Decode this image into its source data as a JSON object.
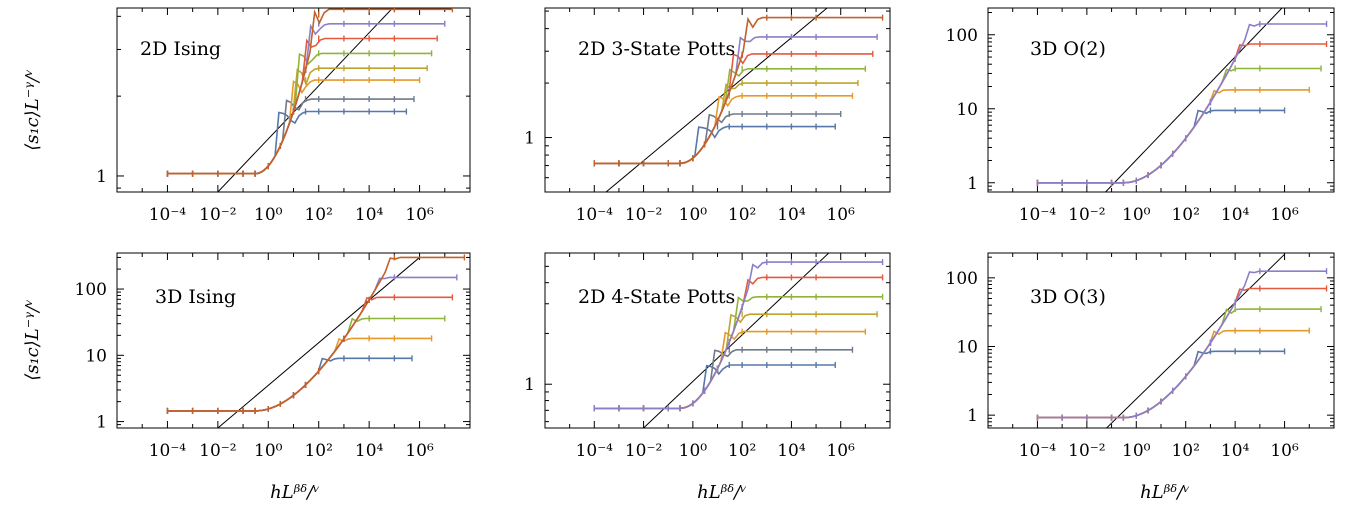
{
  "figure": {
    "ylabel": "⟨s₁c⟩L⁻ᵞ/ᵛ",
    "xlabel": "hLᵝᵟ/ᵛ"
  },
  "colors": {
    "blue": "#5778a8",
    "gray": "#707a8a",
    "orange": "#e39a2b",
    "olive": "#bfa32e",
    "green": "#8fb43c",
    "red": "#e35a3f",
    "purple": "#8a7fc8",
    "brown": "#c4612a",
    "line": "#000000"
  },
  "chart_data": [
    {
      "type": "line",
      "title": "2D Ising",
      "xscale": "log",
      "yscale": "log",
      "xlim": [
        1e-06,
        100000000
      ],
      "ylim": [
        0.87,
        4.3
      ],
      "xticks": [
        "10⁻⁴",
        "10⁻²",
        "10⁰",
        "10²",
        "10⁴",
        "10⁶"
      ],
      "yticks": [
        "1"
      ],
      "grid": false,
      "reference_line": {
        "x": [
          0.01,
          1000000
        ],
        "y": [
          0.87,
          5.5
        ]
      },
      "series": [
        {
          "plateau": 1.75,
          "x": [
            0.0001,
            0.001,
            0.01,
            0.1,
            0.3,
            1,
            3,
            10,
            30,
            100,
            1000,
            10000,
            100000,
            300000
          ]
        },
        {
          "plateau": 1.95,
          "x": [
            0.0001,
            0.001,
            0.01,
            0.1,
            0.3,
            1,
            3,
            10,
            30,
            100,
            1000,
            10000,
            100000,
            600000
          ]
        },
        {
          "plateau": 2.3,
          "x": [
            0.0001,
            0.001,
            0.01,
            0.1,
            0.3,
            1,
            3,
            10,
            30,
            100,
            1000,
            10000,
            100000,
            1000000
          ]
        },
        {
          "plateau": 2.55,
          "x": [
            0.0001,
            0.001,
            0.01,
            0.1,
            0.3,
            1,
            3,
            10,
            30,
            100,
            1000,
            10000,
            100000,
            2000000
          ]
        },
        {
          "plateau": 2.9,
          "x": [
            0.0001,
            0.001,
            0.01,
            0.1,
            0.3,
            1,
            3,
            10,
            30,
            100,
            1000,
            10000,
            100000,
            3000000
          ]
        },
        {
          "plateau": 3.3,
          "x": [
            0.0001,
            0.001,
            0.01,
            0.1,
            0.3,
            1,
            3,
            10,
            30,
            100,
            1000,
            10000,
            100000,
            5000000
          ]
        },
        {
          "plateau": 3.75,
          "x": [
            0.0001,
            0.001,
            0.01,
            0.1,
            0.3,
            1,
            3,
            10,
            30,
            100,
            1000,
            10000,
            100000,
            10000000
          ]
        },
        {
          "plateau": 4.25,
          "x": [
            0.0001,
            0.001,
            0.01,
            0.1,
            0.3,
            1,
            3,
            10,
            30,
            100,
            1000,
            10000,
            100000,
            20000000
          ]
        }
      ]
    },
    {
      "type": "line",
      "title": "2D 3-State Potts",
      "xscale": "log",
      "yscale": "log",
      "xlim": [
        1e-06,
        100000000
      ],
      "ylim": [
        0.5,
        5.2
      ],
      "xticks": [
        "10⁻⁴",
        "10⁻²",
        "10⁰",
        "10²",
        "10⁴",
        "10⁶"
      ],
      "yticks": [
        "1"
      ],
      "grid": false,
      "reference_line": {
        "x": [
          0.0003,
          2000000
        ],
        "y": [
          0.5,
          6.5
        ]
      },
      "series": [
        {
          "plateau": 1.15,
          "x": [
            0.0001,
            0.001,
            0.01,
            0.1,
            0.3,
            1,
            3,
            10,
            30,
            100,
            1000,
            10000,
            100000,
            600000
          ]
        },
        {
          "plateau": 1.35,
          "x": [
            0.0001,
            0.001,
            0.01,
            0.1,
            0.3,
            1,
            3,
            10,
            30,
            100,
            1000,
            10000,
            100000,
            1000000
          ]
        },
        {
          "plateau": 1.7,
          "x": [
            0.0001,
            0.001,
            0.01,
            0.1,
            0.3,
            1,
            3,
            10,
            30,
            100,
            1000,
            10000,
            100000,
            3000000
          ]
        },
        {
          "plateau": 2.0,
          "x": [
            0.0001,
            0.001,
            0.01,
            0.1,
            0.3,
            1,
            3,
            10,
            30,
            100,
            1000,
            10000,
            100000,
            5000000
          ]
        },
        {
          "plateau": 2.4,
          "x": [
            0.0001,
            0.001,
            0.01,
            0.1,
            0.3,
            1,
            3,
            10,
            30,
            100,
            1000,
            10000,
            100000,
            10000000
          ]
        },
        {
          "plateau": 2.9,
          "x": [
            0.0001,
            0.001,
            0.01,
            0.1,
            0.3,
            1,
            3,
            10,
            30,
            100,
            1000,
            10000,
            100000,
            20000000
          ]
        },
        {
          "plateau": 3.6,
          "x": [
            0.0001,
            0.001,
            0.01,
            0.1,
            0.3,
            1,
            3,
            10,
            30,
            100,
            1000,
            10000,
            100000,
            30000000
          ]
        },
        {
          "plateau": 4.6,
          "x": [
            0.0001,
            0.001,
            0.01,
            0.1,
            0.3,
            1,
            3,
            10,
            30,
            100,
            1000,
            10000,
            100000,
            50000000
          ]
        }
      ]
    },
    {
      "type": "line",
      "title": "3D O(2)",
      "xscale": "log",
      "yscale": "log",
      "xlim": [
        1e-06,
        100000000
      ],
      "ylim": [
        0.75,
        230
      ],
      "xticks": [
        "10⁻⁴",
        "10⁻²",
        "10⁰",
        "10²",
        "10⁴",
        "10⁶"
      ],
      "yticks": [
        "1",
        "10",
        "100"
      ],
      "grid": false,
      "reference_line": {
        "x": [
          0.03,
          1000000
        ],
        "y": [
          0.6,
          250
        ]
      },
      "series": [
        {
          "plateau": 9.5,
          "x": [
            0.0001,
            0.001,
            0.01,
            0.1,
            0.3,
            1,
            3,
            10,
            30,
            100,
            1000,
            10000,
            100000,
            1000000
          ]
        },
        {
          "plateau": 18,
          "x": [
            0.0001,
            0.001,
            0.01,
            0.1,
            0.3,
            1,
            3,
            10,
            30,
            100,
            1000,
            10000,
            100000,
            10000000
          ]
        },
        {
          "plateau": 35,
          "x": [
            0.0001,
            0.001,
            0.01,
            0.1,
            0.3,
            1,
            3,
            10,
            30,
            100,
            1000,
            10000,
            100000,
            30000000
          ]
        },
        {
          "plateau": 75,
          "x": [
            0.0001,
            0.001,
            0.01,
            0.1,
            0.3,
            1,
            3,
            10,
            30,
            100,
            1000,
            10000,
            100000,
            50000000
          ]
        },
        {
          "plateau": 140,
          "x": [
            0.0001,
            0.001,
            0.01,
            0.1,
            0.3,
            1,
            3,
            10,
            30,
            100,
            1000,
            10000,
            100000,
            50000000
          ]
        }
      ]
    },
    {
      "type": "line",
      "title": "3D Ising",
      "xscale": "log",
      "yscale": "log",
      "xlim": [
        1e-06,
        100000000
      ],
      "ylim": [
        0.8,
        350
      ],
      "xticks": [
        "10⁻⁴",
        "10⁻²",
        "10⁰",
        "10²",
        "10⁴",
        "10⁶"
      ],
      "yticks": [
        "1",
        "10",
        "100"
      ],
      "grid": false,
      "reference_line": {
        "x": [
          0.01,
          1000000
        ],
        "y": [
          0.8,
          300
        ]
      },
      "series": [
        {
          "plateau": 9,
          "x": [
            0.0001,
            0.001,
            0.01,
            0.1,
            0.3,
            1,
            3,
            10,
            30,
            100,
            1000,
            10000,
            100000,
            500000
          ]
        },
        {
          "plateau": 18,
          "x": [
            0.0001,
            0.001,
            0.01,
            0.1,
            0.3,
            1,
            3,
            10,
            30,
            100,
            1000,
            10000,
            100000,
            3000000
          ]
        },
        {
          "plateau": 36,
          "x": [
            0.0001,
            0.001,
            0.01,
            0.1,
            0.3,
            1,
            3,
            10,
            30,
            100,
            1000,
            10000,
            100000,
            10000000
          ]
        },
        {
          "plateau": 75,
          "x": [
            0.0001,
            0.001,
            0.01,
            0.1,
            0.3,
            1,
            3,
            10,
            30,
            100,
            1000,
            10000,
            100000,
            20000000
          ]
        },
        {
          "plateau": 150,
          "x": [
            0.0001,
            0.001,
            0.01,
            0.1,
            0.3,
            1,
            3,
            10,
            30,
            100,
            1000,
            10000,
            100000,
            30000000
          ]
        },
        {
          "plateau": 300,
          "x": [
            0.0001,
            0.001,
            0.01,
            0.1,
            0.3,
            1,
            3,
            10,
            30,
            100,
            1000,
            10000,
            100000,
            60000000
          ]
        }
      ]
    },
    {
      "type": "line",
      "title": "2D 4-State Potts",
      "xscale": "log",
      "yscale": "log",
      "xlim": [
        1e-06,
        100000000
      ],
      "ylim": [
        0.55,
        6
      ],
      "xticks": [
        "10⁻⁴",
        "10⁻²",
        "10⁰",
        "10²",
        "10⁴",
        "10⁶"
      ],
      "yticks": [
        "1"
      ],
      "grid": false,
      "reference_line": {
        "x": [
          0.01,
          1000000
        ],
        "y": [
          0.55,
          7
        ]
      },
      "series": [
        {
          "plateau": 1.3,
          "x": [
            0.0001,
            0.001,
            0.01,
            0.1,
            0.3,
            1,
            3,
            10,
            30,
            100,
            1000,
            10000,
            100000,
            600000
          ]
        },
        {
          "plateau": 1.6,
          "x": [
            0.0001,
            0.001,
            0.01,
            0.1,
            0.3,
            1,
            3,
            10,
            30,
            100,
            1000,
            10000,
            100000,
            3000000
          ]
        },
        {
          "plateau": 2.05,
          "x": [
            0.0001,
            0.001,
            0.01,
            0.1,
            0.3,
            1,
            3,
            10,
            30,
            100,
            1000,
            10000,
            100000,
            10000000
          ]
        },
        {
          "plateau": 2.6,
          "x": [
            0.0001,
            0.001,
            0.01,
            0.1,
            0.3,
            1,
            3,
            10,
            30,
            100,
            1000,
            10000,
            100000,
            30000000
          ]
        },
        {
          "plateau": 3.3,
          "x": [
            0.0001,
            0.001,
            0.01,
            0.1,
            0.3,
            1,
            3,
            10,
            30,
            100,
            1000,
            10000,
            100000,
            50000000
          ]
        },
        {
          "plateau": 4.3,
          "x": [
            0.0001,
            0.001,
            0.01,
            0.1,
            0.3,
            1,
            3,
            10,
            30,
            100,
            1000,
            10000,
            100000,
            50000000
          ]
        },
        {
          "plateau": 5.3,
          "x": [
            0.0001,
            0.001,
            0.01,
            0.1,
            0.3,
            1,
            3,
            10,
            30,
            100,
            1000,
            10000,
            100000,
            50000000
          ]
        }
      ]
    },
    {
      "type": "line",
      "title": "3D O(3)",
      "xscale": "log",
      "yscale": "log",
      "xlim": [
        1e-06,
        100000000
      ],
      "ylim": [
        0.65,
        230
      ],
      "xticks": [
        "10⁻⁴",
        "10⁻²",
        "10⁰",
        "10²",
        "10⁴",
        "10⁶"
      ],
      "yticks": [
        "1",
        "10",
        "100"
      ],
      "grid": false,
      "reference_line": {
        "x": [
          0.05,
          1000000
        ],
        "y": [
          0.6,
          220
        ]
      },
      "series": [
        {
          "plateau": 8.5,
          "x": [
            0.0001,
            0.001,
            0.01,
            0.1,
            0.3,
            1,
            3,
            10,
            30,
            100,
            1000,
            10000,
            100000,
            1000000
          ]
        },
        {
          "plateau": 17,
          "x": [
            0.0001,
            0.001,
            0.01,
            0.1,
            0.3,
            1,
            3,
            10,
            30,
            100,
            1000,
            10000,
            100000,
            10000000
          ]
        },
        {
          "plateau": 35,
          "x": [
            0.0001,
            0.001,
            0.01,
            0.1,
            0.3,
            1,
            3,
            10,
            30,
            100,
            1000,
            10000,
            100000,
            30000000
          ]
        },
        {
          "plateau": 70,
          "x": [
            0.0001,
            0.001,
            0.01,
            0.1,
            0.3,
            1,
            3,
            10,
            30,
            100,
            1000,
            10000,
            100000,
            50000000
          ]
        },
        {
          "plateau": 125,
          "x": [
            0.0001,
            0.001,
            0.01,
            0.1,
            0.3,
            1,
            3,
            10,
            30,
            100,
            1000,
            10000,
            100000,
            50000000
          ]
        }
      ]
    }
  ]
}
